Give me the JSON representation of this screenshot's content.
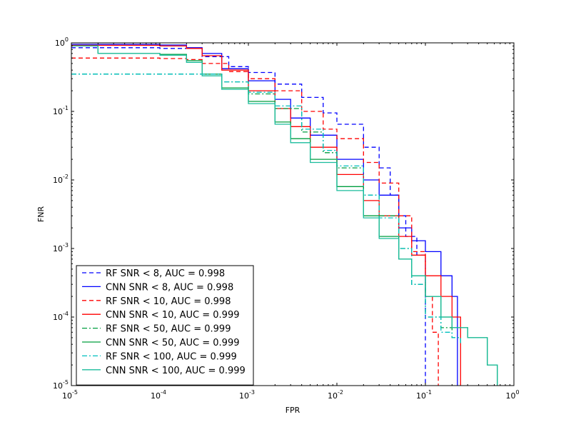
{
  "chart_data": {
    "type": "line",
    "title": "",
    "xlabel": "FPR",
    "ylabel": "FNR",
    "x_scale": "log",
    "y_scale": "log",
    "xlim": [
      1e-05,
      1
    ],
    "ylim": [
      1e-05,
      1
    ],
    "x_ticks": [
      {
        "base": "10",
        "exp": "-5",
        "value": 1e-05
      },
      {
        "base": "10",
        "exp": "-4",
        "value": 0.0001
      },
      {
        "base": "10",
        "exp": "-3",
        "value": 0.001
      },
      {
        "base": "10",
        "exp": "-2",
        "value": 0.01
      },
      {
        "base": "10",
        "exp": "-1",
        "value": 0.1
      },
      {
        "base": "10",
        "exp": "0",
        "value": 1
      }
    ],
    "y_ticks": [
      {
        "base": "10",
        "exp": "-5",
        "value": 1e-05
      },
      {
        "base": "10",
        "exp": "-4",
        "value": 0.0001
      },
      {
        "base": "10",
        "exp": "-3",
        "value": 0.001
      },
      {
        "base": "10",
        "exp": "-2",
        "value": 0.01
      },
      {
        "base": "10",
        "exp": "-1",
        "value": 0.1
      },
      {
        "base": "10",
        "exp": "0",
        "value": 1
      }
    ],
    "grid": false,
    "legend_position": "bottom-left",
    "series": [
      {
        "name": "RF SNR < 8, AUC = 0.998",
        "color": "#0000ff",
        "style": "dashed",
        "x": [
          1e-05,
          0.0001,
          0.0003,
          0.0006,
          0.001,
          0.002,
          0.004,
          0.007,
          0.01,
          0.02,
          0.03,
          0.04,
          0.05,
          0.06,
          0.08,
          0.1,
          0.1
        ],
        "y": [
          0.85,
          0.83,
          0.63,
          0.45,
          0.37,
          0.25,
          0.16,
          0.095,
          0.065,
          0.03,
          0.015,
          0.006,
          0.003,
          0.0015,
          0.0008,
          0.0004,
          1e-05
        ]
      },
      {
        "name": "CNN SNR < 8, AUC = 0.998",
        "color": "#0000ff",
        "style": "solid",
        "x": [
          1e-05,
          0.0001,
          0.0002,
          0.0003,
          0.0005,
          0.001,
          0.002,
          0.003,
          0.005,
          0.01,
          0.02,
          0.03,
          0.05,
          0.07,
          0.1,
          0.15,
          0.2,
          0.23,
          0.23
        ],
        "y": [
          0.95,
          0.93,
          0.85,
          0.7,
          0.42,
          0.28,
          0.15,
          0.08,
          0.045,
          0.02,
          0.01,
          0.006,
          0.002,
          0.0013,
          0.0009,
          0.0004,
          0.0002,
          0.0001,
          1e-05
        ]
      },
      {
        "name": "RF SNR < 10, AUC = 0.998",
        "color": "#ff0000",
        "style": "dashed",
        "x": [
          1e-05,
          0.0001,
          0.0002,
          0.0003,
          0.0006,
          0.001,
          0.002,
          0.004,
          0.007,
          0.01,
          0.02,
          0.03,
          0.05,
          0.07,
          0.1,
          0.12,
          0.14,
          0.14
        ],
        "y": [
          0.6,
          0.59,
          0.57,
          0.5,
          0.38,
          0.3,
          0.2,
          0.1,
          0.055,
          0.04,
          0.018,
          0.009,
          0.003,
          0.0009,
          0.0002,
          6e-05,
          6e-05,
          1e-05
        ]
      },
      {
        "name": "CNN SNR < 10, AUC = 0.999",
        "color": "#ff0000",
        "style": "solid",
        "x": [
          1e-05,
          0.0001,
          0.0002,
          0.0003,
          0.0005,
          0.001,
          0.002,
          0.003,
          0.005,
          0.01,
          0.02,
          0.03,
          0.05,
          0.07,
          0.1,
          0.15,
          0.2,
          0.25,
          0.25
        ],
        "y": [
          0.92,
          0.9,
          0.83,
          0.65,
          0.4,
          0.2,
          0.11,
          0.06,
          0.03,
          0.012,
          0.005,
          0.003,
          0.0015,
          0.0008,
          0.0004,
          0.0002,
          0.0001,
          7e-05,
          1e-05
        ]
      },
      {
        "name": "RF SNR < 50, AUC = 0.999",
        "color": "#009e3f",
        "style": "dashdot",
        "x": [
          1e-05,
          0.0003,
          0.0005,
          0.001,
          0.002,
          0.004,
          0.007,
          0.01,
          0.02,
          0.03,
          0.05,
          0.07,
          0.1,
          0.15,
          0.2,
          0.25
        ],
        "y": [
          0.35,
          0.35,
          0.27,
          0.18,
          0.11,
          0.05,
          0.025,
          0.015,
          0.006,
          0.003,
          0.001,
          0.0003,
          0.0001,
          7e-05,
          5e-05,
          4e-05
        ]
      },
      {
        "name": "CNN SNR < 50, AUC = 0.999",
        "color": "#009e3f",
        "style": "solid",
        "x": [
          1e-05,
          2e-05,
          0.0001,
          0.0002,
          0.0003,
          0.0005,
          0.001,
          0.002,
          0.003,
          0.005,
          0.01,
          0.02,
          0.03,
          0.05,
          0.07,
          0.1,
          0.15,
          0.2,
          0.3,
          0.5,
          0.65,
          0.65
        ],
        "y": [
          0.9,
          0.7,
          0.68,
          0.55,
          0.35,
          0.22,
          0.14,
          0.07,
          0.04,
          0.02,
          0.008,
          0.003,
          0.0015,
          0.0007,
          0.0004,
          0.0002,
          0.0001,
          7e-05,
          5e-05,
          2e-05,
          2e-05,
          1e-05
        ]
      },
      {
        "name": "RF SNR < 100, AUC = 0.999",
        "color": "#00bfbf",
        "style": "dashdot",
        "x": [
          1e-05,
          0.0003,
          0.0005,
          0.001,
          0.002,
          0.004,
          0.007,
          0.01,
          0.02,
          0.03,
          0.05,
          0.07,
          0.1,
          0.15,
          0.2,
          0.25
        ],
        "y": [
          0.35,
          0.35,
          0.27,
          0.19,
          0.12,
          0.055,
          0.027,
          0.016,
          0.006,
          0.0028,
          0.001,
          0.0003,
          0.0001,
          6e-05,
          5e-05,
          4e-05
        ]
      },
      {
        "name": "CNN SNR < 100, AUC = 0.999",
        "color": "#1abc9c",
        "style": "solid",
        "x": [
          1e-05,
          2e-05,
          0.0001,
          0.0002,
          0.0003,
          0.0005,
          0.001,
          0.002,
          0.003,
          0.005,
          0.01,
          0.02,
          0.03,
          0.05,
          0.07,
          0.1,
          0.15,
          0.2,
          0.3,
          0.5,
          0.65,
          0.65
        ],
        "y": [
          0.9,
          0.7,
          0.66,
          0.52,
          0.33,
          0.21,
          0.13,
          0.065,
          0.035,
          0.018,
          0.007,
          0.0028,
          0.0014,
          0.0007,
          0.0004,
          0.0002,
          0.0001,
          7e-05,
          5e-05,
          2e-05,
          2e-05,
          1e-05
        ]
      }
    ]
  }
}
